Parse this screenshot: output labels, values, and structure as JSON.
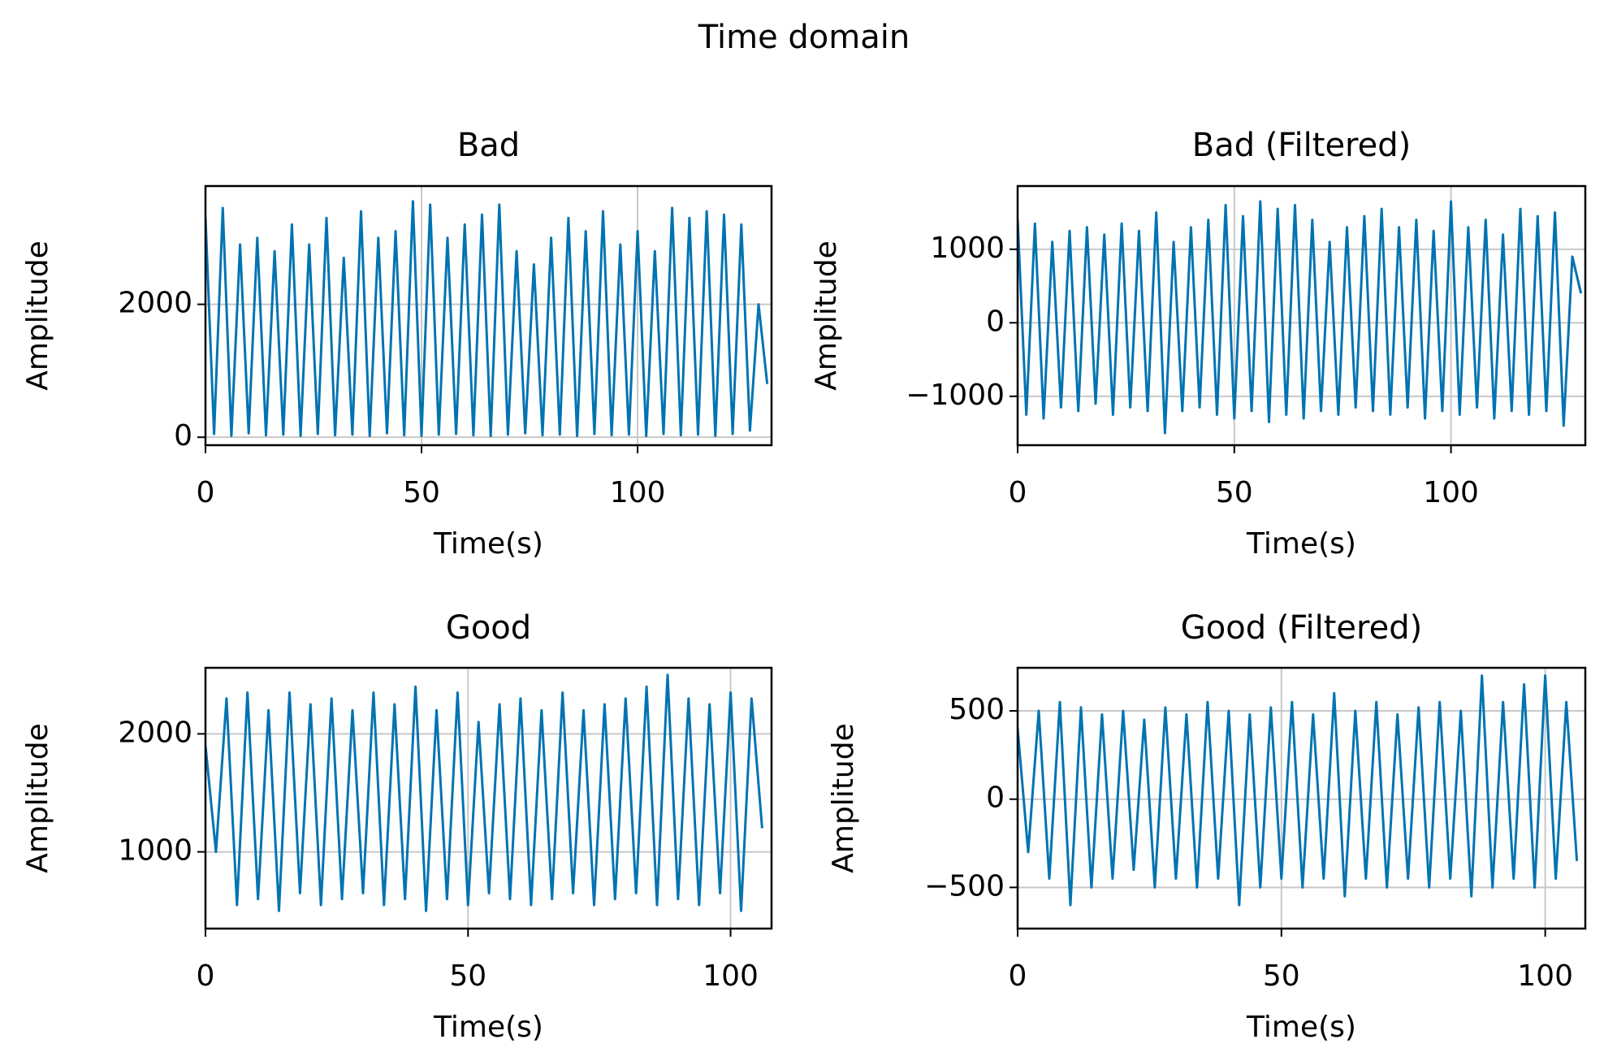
{
  "title": "Time domain",
  "chart_data": [
    {
      "type": "line",
      "title": "Bad",
      "x_label": "Time(s)",
      "y_label": "Amplitude",
      "color": "#0173b2",
      "grid": true,
      "xlim": [
        0,
        131
      ],
      "ylim": [
        -120,
        3780
      ],
      "xticks": [
        0,
        50,
        100
      ],
      "yticks": [
        0,
        2000
      ],
      "x": [
        0,
        2,
        4,
        6,
        8,
        10,
        12,
        14,
        16,
        18,
        20,
        22,
        24,
        26,
        28,
        30,
        32,
        34,
        36,
        38,
        40,
        42,
        44,
        46,
        48,
        50,
        52,
        54,
        56,
        58,
        60,
        62,
        64,
        66,
        68,
        70,
        72,
        74,
        76,
        78,
        80,
        82,
        84,
        86,
        88,
        90,
        92,
        94,
        96,
        98,
        100,
        102,
        104,
        106,
        108,
        110,
        112,
        114,
        116,
        118,
        120,
        122,
        124,
        126,
        128,
        130
      ],
      "values": [
        3300,
        50,
        3450,
        20,
        2900,
        60,
        3000,
        30,
        2800,
        40,
        3200,
        20,
        2900,
        50,
        3300,
        30,
        2700,
        40,
        3400,
        20,
        3000,
        60,
        3100,
        30,
        3550,
        20,
        3500,
        40,
        3000,
        50,
        3200,
        30,
        3350,
        20,
        3500,
        40,
        2800,
        60,
        2600,
        30,
        3000,
        40,
        3300,
        20,
        3100,
        50,
        3400,
        30,
        2900,
        40,
        3100,
        20,
        2800,
        50,
        3450,
        30,
        3300,
        40,
        3400,
        20,
        3350,
        50,
        3200,
        100,
        2000,
        800
      ]
    },
    {
      "type": "line",
      "title": "Bad (Filtered)",
      "x_label": "Time(s)",
      "y_label": "Amplitude",
      "color": "#0173b2",
      "grid": true,
      "xlim": [
        0,
        131
      ],
      "ylim": [
        -1665,
        1860
      ],
      "xticks": [
        0,
        50,
        100
      ],
      "yticks": [
        -1000,
        0,
        1000
      ],
      "x": [
        0,
        2,
        4,
        6,
        8,
        10,
        12,
        14,
        16,
        18,
        20,
        22,
        24,
        26,
        28,
        30,
        32,
        34,
        36,
        38,
        40,
        42,
        44,
        46,
        48,
        50,
        52,
        54,
        56,
        58,
        60,
        62,
        64,
        66,
        68,
        70,
        72,
        74,
        76,
        78,
        80,
        82,
        84,
        86,
        88,
        90,
        92,
        94,
        96,
        98,
        100,
        102,
        104,
        106,
        108,
        110,
        112,
        114,
        116,
        118,
        120,
        122,
        124,
        126,
        128,
        130
      ],
      "values": [
        1400,
        -1250,
        1350,
        -1300,
        1100,
        -1150,
        1250,
        -1200,
        1300,
        -1100,
        1200,
        -1250,
        1350,
        -1150,
        1250,
        -1200,
        1500,
        -1500,
        1100,
        -1200,
        1300,
        -1150,
        1400,
        -1250,
        1600,
        -1300,
        1450,
        -1200,
        1650,
        -1350,
        1550,
        -1250,
        1600,
        -1300,
        1400,
        -1200,
        1100,
        -1250,
        1300,
        -1150,
        1450,
        -1200,
        1550,
        -1250,
        1300,
        -1150,
        1400,
        -1300,
        1250,
        -1200,
        1650,
        -1250,
        1300,
        -1150,
        1400,
        -1300,
        1200,
        -1200,
        1550,
        -1250,
        1450,
        -1200,
        1500,
        -1400,
        900,
        400
      ]
    },
    {
      "type": "line",
      "title": "Good",
      "x_label": "Time(s)",
      "y_label": "Amplitude",
      "color": "#0173b2",
      "grid": true,
      "xlim": [
        0,
        107.8
      ],
      "ylim": [
        350,
        2560
      ],
      "xticks": [
        0,
        50,
        100
      ],
      "yticks": [
        1000,
        2000
      ],
      "x": [
        0,
        2,
        4,
        6,
        8,
        10,
        12,
        14,
        16,
        18,
        20,
        22,
        24,
        26,
        28,
        30,
        32,
        34,
        36,
        38,
        40,
        42,
        44,
        46,
        48,
        50,
        52,
        54,
        56,
        58,
        60,
        62,
        64,
        66,
        68,
        70,
        72,
        74,
        76,
        78,
        80,
        82,
        84,
        86,
        88,
        90,
        92,
        94,
        96,
        98,
        100,
        102,
        104,
        106
      ],
      "values": [
        1900,
        1000,
        2300,
        550,
        2350,
        600,
        2200,
        500,
        2350,
        650,
        2250,
        550,
        2300,
        600,
        2200,
        650,
        2350,
        550,
        2250,
        600,
        2400,
        500,
        2200,
        600,
        2350,
        550,
        2100,
        650,
        2250,
        600,
        2300,
        550,
        2200,
        600,
        2350,
        650,
        2200,
        550,
        2250,
        600,
        2300,
        650,
        2400,
        550,
        2500,
        600,
        2300,
        550,
        2250,
        650,
        2350,
        500,
        2300,
        1200
      ]
    },
    {
      "type": "line",
      "title": "Good (Filtered)",
      "x_label": "Time(s)",
      "y_label": "Amplitude",
      "color": "#0173b2",
      "grid": true,
      "xlim": [
        0,
        107.6
      ],
      "ylim": [
        -733,
        744
      ],
      "xticks": [
        0,
        50,
        100
      ],
      "yticks": [
        -500,
        0,
        500
      ],
      "x": [
        0,
        2,
        4,
        6,
        8,
        10,
        12,
        14,
        16,
        18,
        20,
        22,
        24,
        26,
        28,
        30,
        32,
        34,
        36,
        38,
        40,
        42,
        44,
        46,
        48,
        50,
        52,
        54,
        56,
        58,
        60,
        62,
        64,
        66,
        68,
        70,
        72,
        74,
        76,
        78,
        80,
        82,
        84,
        86,
        88,
        90,
        92,
        94,
        96,
        98,
        100,
        102,
        104,
        106
      ],
      "values": [
        400,
        -300,
        500,
        -450,
        550,
        -600,
        520,
        -500,
        480,
        -450,
        500,
        -400,
        450,
        -500,
        520,
        -450,
        480,
        -500,
        550,
        -450,
        500,
        -600,
        480,
        -500,
        520,
        -450,
        550,
        -500,
        480,
        -450,
        600,
        -550,
        500,
        -450,
        550,
        -500,
        480,
        -450,
        520,
        -500,
        550,
        -450,
        500,
        -550,
        700,
        -500,
        550,
        -450,
        650,
        -500,
        700,
        -450,
        550,
        -350
      ]
    }
  ]
}
